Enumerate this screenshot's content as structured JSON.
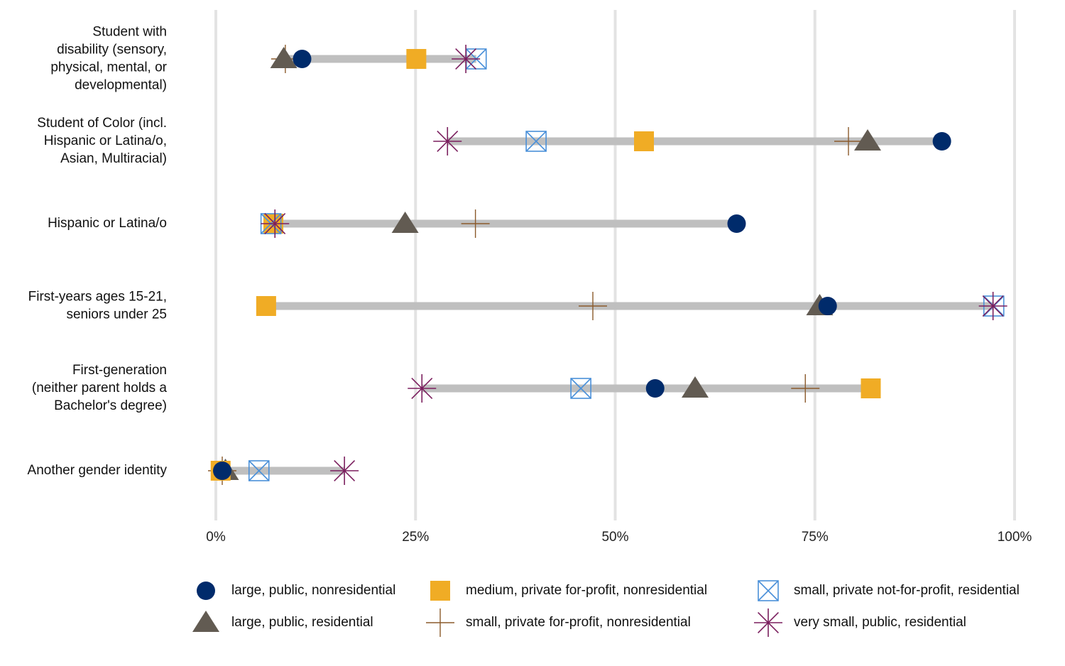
{
  "chart_data": {
    "type": "dot-range",
    "title": "",
    "xlabel": "",
    "ylabel": "",
    "xlim": [
      0,
      1
    ],
    "x_ticks": [
      {
        "value": 0,
        "label": "0%"
      },
      {
        "value": 0.25,
        "label": "25%"
      },
      {
        "value": 0.5,
        "label": "50%"
      },
      {
        "value": 0.75,
        "label": "75%"
      },
      {
        "value": 1,
        "label": "100%"
      }
    ],
    "grid": "vertical",
    "legend_position": "bottom",
    "categories": [
      "Student with disability (sensory, physical, mental, or developmental)",
      "Student of Color (incl. Hispanic or Latina/o, Asian, Multiracial)",
      "Hispanic or Latina/o",
      "First-years ages 15-21, seniors under 25",
      "First-generation (neither parent holds a Bachelor's degree)",
      "Another gender identity"
    ],
    "category_lines": [
      [
        "Student with",
        "disability (sensory,",
        "physical, mental, or",
        "developmental)"
      ],
      [
        "Student of Color (incl.",
        "Hispanic or Latina/o,",
        "Asian, Multiracial)"
      ],
      [
        "Hispanic or Latina/o"
      ],
      [
        "First-years ages 15-21,",
        "seniors under 25"
      ],
      [
        "First-generation",
        "(neither parent holds a",
        "Bachelor's degree)"
      ],
      [
        "Another gender identity"
      ]
    ],
    "range_color": "#bfbfbf",
    "series": [
      {
        "name": "large, public, nonresidential",
        "marker": "circle",
        "color": "#002b6b",
        "values": [
          0.108,
          0.909,
          0.652,
          0.766,
          0.55,
          0.008
        ]
      },
      {
        "name": "medium, private for-profit, nonresidential",
        "marker": "square",
        "color": "#f0ac25",
        "values": [
          0.251,
          0.536,
          0.072,
          0.063,
          0.82,
          0.006
        ]
      },
      {
        "name": "small, private not-for-profit, residential",
        "marker": "square-x",
        "color": "#4a90d9",
        "values": [
          0.326,
          0.401,
          0.069,
          0.974,
          0.457,
          0.054
        ]
      },
      {
        "name": "large, public, residential",
        "marker": "triangle",
        "color": "#625b52",
        "values": [
          0.085,
          0.816,
          0.237,
          0.756,
          0.6,
          0.012
        ]
      },
      {
        "name": "small, private for-profit, nonresidential",
        "marker": "plus",
        "color": "#8b5a2b",
        "values": [
          0.087,
          0.792,
          0.325,
          0.472,
          0.738,
          0.008
        ]
      },
      {
        "name": "very small, public, residential",
        "marker": "asterisk",
        "color": "#7b1f5e",
        "values": [
          0.313,
          0.29,
          0.074,
          0.973,
          0.258,
          0.161
        ]
      }
    ],
    "legend_order": [
      0,
      1,
      2,
      3,
      4,
      5
    ]
  }
}
